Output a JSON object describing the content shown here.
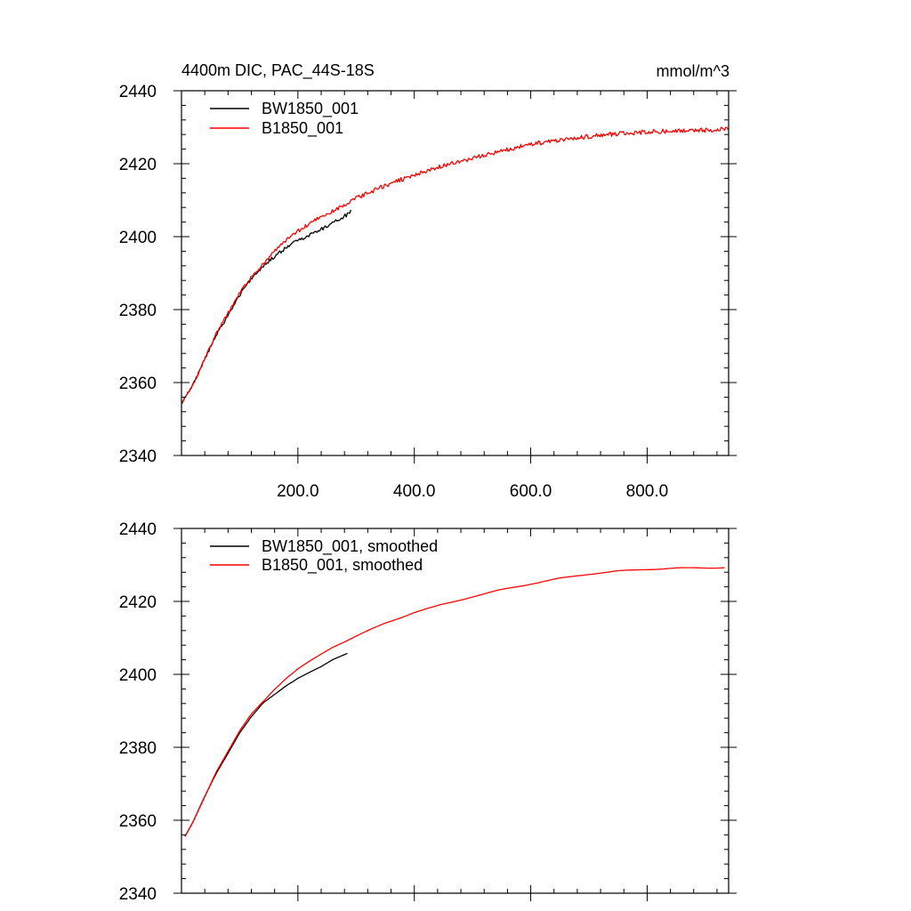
{
  "chart_data": [
    {
      "type": "line",
      "title": "4400m DIC, PAC_44S-18S",
      "units": "mmol/m^3",
      "xlim": [
        0,
        940
      ],
      "ylim": [
        2340,
        2440
      ],
      "xticks": [
        200,
        400,
        600,
        800
      ],
      "xtick_labels": [
        "200.0",
        "400.0",
        "600.0",
        "800.0"
      ],
      "yticks": [
        2340,
        2360,
        2380,
        2400,
        2420,
        2440
      ],
      "ytick_labels": [
        "2340",
        "2360",
        "2380",
        "2400",
        "2420",
        "2440"
      ],
      "legend": "top-left",
      "grid": false,
      "series": [
        {
          "name": "BW1850_001",
          "color": "#000000",
          "x": [
            1,
            20,
            40,
            60,
            80,
            100,
            120,
            140,
            160,
            180,
            200,
            220,
            240,
            260,
            280,
            292
          ],
          "y": [
            2354.5,
            2359.5,
            2366.5,
            2373,
            2378.5,
            2384,
            2388.5,
            2392,
            2394.5,
            2397,
            2399,
            2400.5,
            2402,
            2404,
            2405.5,
            2407
          ]
        },
        {
          "name": "B1850_001",
          "color": "#ff0000",
          "x": [
            1,
            20,
            40,
            60,
            80,
            100,
            120,
            140,
            160,
            180,
            200,
            220,
            240,
            260,
            280,
            300,
            350,
            400,
            450,
            500,
            550,
            600,
            650,
            700,
            750,
            800,
            850,
            900,
            940
          ],
          "y": [
            2354.5,
            2359.5,
            2366.5,
            2373.5,
            2379,
            2384.5,
            2389,
            2392.5,
            2396,
            2399,
            2401.5,
            2403.5,
            2405.5,
            2407,
            2408.5,
            2410.5,
            2414,
            2417,
            2419.5,
            2421.5,
            2423.5,
            2425.3,
            2426.5,
            2427.5,
            2428.2,
            2428.7,
            2429,
            2429.2,
            2429.5
          ]
        }
      ]
    },
    {
      "type": "line",
      "xlim": [
        0,
        940
      ],
      "ylim": [
        2340,
        2440
      ],
      "xticks": [
        200,
        400,
        600,
        800
      ],
      "yticks": [
        2340,
        2360,
        2380,
        2400,
        2420,
        2440
      ],
      "ytick_labels": [
        "2340",
        "2360",
        "2380",
        "2400",
        "2420",
        "2440"
      ],
      "legend": "top-left",
      "grid": false,
      "series": [
        {
          "name": "BW1850_001, smoothed",
          "color": "#000000",
          "x": [
            6,
            20,
            40,
            60,
            80,
            100,
            120,
            140,
            160,
            180,
            200,
            220,
            240,
            260,
            280,
            287
          ],
          "y": [
            2355.5,
            2359.5,
            2366.5,
            2373,
            2378.5,
            2384,
            2388.3,
            2392,
            2394.5,
            2397,
            2399,
            2400.5,
            2402,
            2404,
            2405.5,
            2406
          ]
        },
        {
          "name": "B1850_001, smoothed",
          "color": "#ff0000",
          "x": [
            6,
            20,
            40,
            60,
            80,
            100,
            120,
            140,
            160,
            180,
            200,
            220,
            240,
            260,
            280,
            300,
            350,
            400,
            450,
            500,
            550,
            600,
            650,
            700,
            750,
            800,
            850,
            900,
            935
          ],
          "y": [
            2355.5,
            2359.5,
            2366.5,
            2373.5,
            2379,
            2384.5,
            2389,
            2392.5,
            2396,
            2399,
            2401.5,
            2403.5,
            2405.5,
            2407.5,
            2409,
            2410.5,
            2414,
            2417,
            2419.2,
            2421.3,
            2423.2,
            2424.8,
            2426.3,
            2427.5,
            2428.3,
            2428.8,
            2429.1,
            2429.2,
            2429.3
          ]
        }
      ]
    }
  ]
}
